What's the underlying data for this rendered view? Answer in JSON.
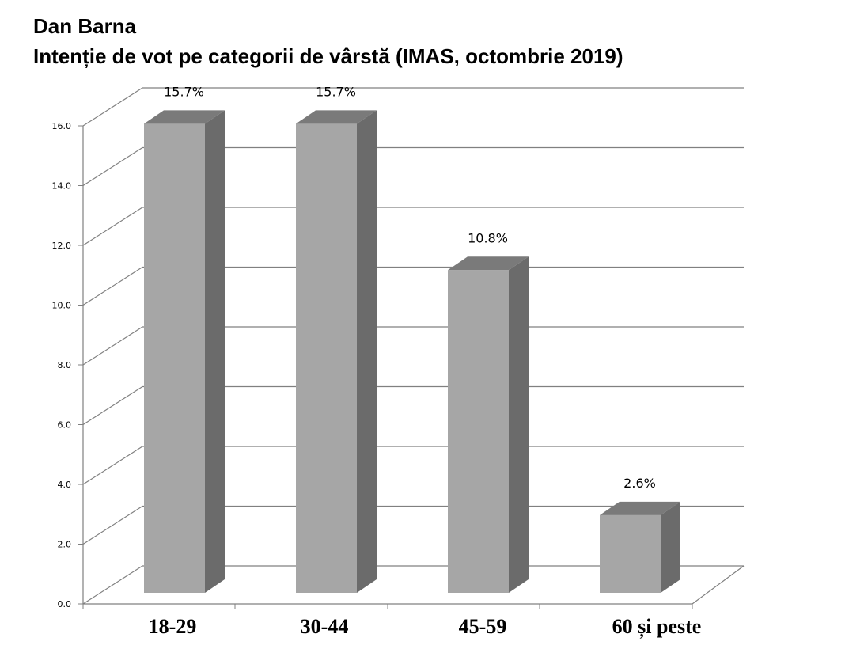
{
  "chart_data": {
    "type": "bar",
    "title": "Dan Barna",
    "subtitle": "Intenție de vot pe categorii de vârstă (IMAS, octombrie 2019)",
    "categories": [
      "18-29",
      "30-44",
      "45-59",
      "60 și peste"
    ],
    "values": [
      15.7,
      15.7,
      10.8,
      2.6
    ],
    "data_labels": [
      "15.7%",
      "15.7%",
      "10.8%",
      "2.6%"
    ],
    "yticks": [
      "0.0",
      "2.0",
      "4.0",
      "6.0",
      "8.0",
      "10.0",
      "12.0",
      "14.0",
      "16.0"
    ],
    "ylim": [
      0,
      16
    ],
    "grid": true,
    "legend": "none",
    "three_d": true,
    "colors": {
      "bar_front": "#a6a6a6",
      "bar_side": "#6b6b6b",
      "bar_top": "#7a7a7a",
      "grid": "#808080",
      "axis": "#808080"
    }
  }
}
